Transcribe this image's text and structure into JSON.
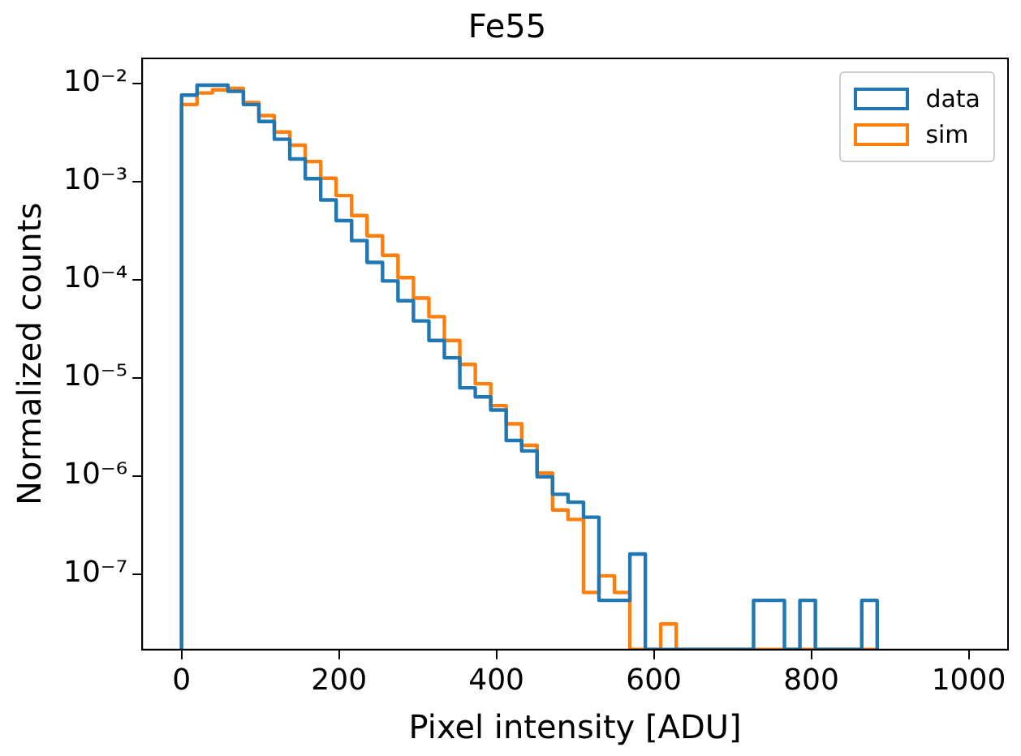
{
  "chart_data": {
    "type": "histogram",
    "title": "Fe55",
    "xlabel": "Pixel intensity [ADU]",
    "ylabel": "Normalized counts",
    "log": "y",
    "grid": false,
    "legend": "top right",
    "bins": [
      0,
      19.64,
      39.28,
      58.92,
      78.56,
      98.2,
      117.84,
      137.48,
      157.12,
      176.76,
      196.4,
      216.04,
      235.68,
      255.32,
      274.96,
      294.6,
      314.24,
      333.88,
      353.52,
      373.16,
      392.8,
      412.44,
      432.08,
      451.72,
      471.36,
      491,
      510.64,
      530.28,
      549.92,
      569.56,
      589.2,
      608.84,
      628.48,
      648.12,
      667.76,
      687.4,
      707.04,
      726.68,
      746.32,
      765.96,
      785.6,
      805.24,
      824.88,
      844.52,
      864.16,
      883.8
    ],
    "series": [
      {
        "name": "data",
        "color": "#1f77b4",
        "values": [
          0.0076,
          0.0096,
          0.0096,
          0.0083,
          0.0061,
          0.0041,
          0.0027,
          0.0017,
          0.00107,
          0.00065,
          0.0004,
          0.00025,
          0.00015,
          9.7e-05,
          6.1e-05,
          3.8e-05,
          2.4e-05,
          1.6e-05,
          7.9e-06,
          6.4e-06,
          4.7e-06,
          2.3e-06,
          1.8e-06,
          9.8e-07,
          6.5e-07,
          5.4e-07,
          3.8e-07,
          5.4e-08,
          5.4e-08,
          1.6e-07,
          null,
          null,
          null,
          null,
          null,
          null,
          null,
          5.4e-08,
          5.4e-08,
          null,
          5.4e-08,
          null,
          null,
          null,
          5.4e-08
        ]
      },
      {
        "name": "sim",
        "color": "#ff7f0e",
        "values": [
          0.0061,
          0.008,
          0.0086,
          0.0089,
          0.0064,
          0.0047,
          0.0032,
          0.00235,
          0.0016,
          0.00108,
          0.00072,
          0.00045,
          0.00028,
          0.000177,
          0.000105,
          6.5e-05,
          4.2e-05,
          2.4e-05,
          1.37e-05,
          8.7e-06,
          5.2e-06,
          3.4e-06,
          2.05e-06,
          1.07e-06,
          4.5e-07,
          3.6e-07,
          6.5e-08,
          9.6e-08,
          6.5e-08,
          null,
          null,
          3.1e-08,
          null,
          null,
          null,
          null,
          null,
          null,
          null,
          null,
          null,
          null,
          null,
          null,
          null
        ]
      }
    ],
    "xlim": [
      -50,
      1050
    ],
    "xticks": [
      0,
      200,
      400,
      600,
      800,
      1000
    ],
    "ylim": [
      1.7e-08,
      0.018
    ],
    "yticks": [
      {
        "value": 1e-07,
        "label": "10⁻⁷"
      },
      {
        "value": 1e-06,
        "label": "10⁻⁶"
      },
      {
        "value": 1e-05,
        "label": "10⁻⁵"
      },
      {
        "value": 0.0001,
        "label": "10⁻⁴"
      },
      {
        "value": 0.001,
        "label": "10⁻³"
      },
      {
        "value": 0.01,
        "label": "10⁻²"
      }
    ]
  }
}
